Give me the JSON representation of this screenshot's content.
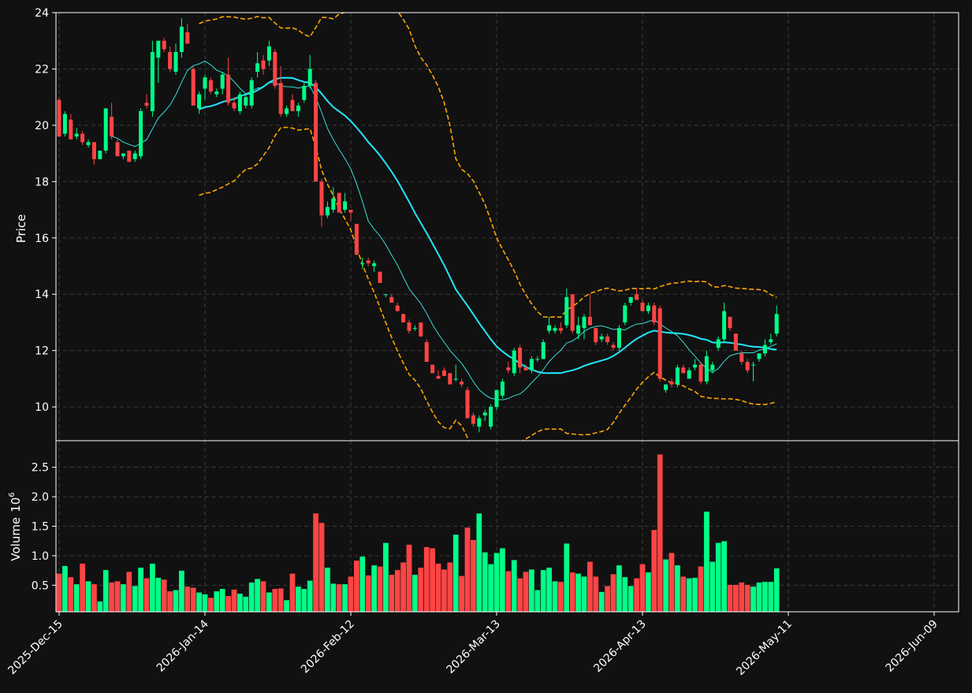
{
  "chart_data": {
    "type": "candlestick",
    "theme": {
      "background": "#111111",
      "grid": "#3a3a3a",
      "axis": "#ffffff",
      "up": "#00ff88",
      "down": "#ff4444",
      "ma_fast": "#37e0d6",
      "ma_slow": "#21e6ff",
      "bands": "#ffa500"
    },
    "price_panel": {
      "ylabel": "Price",
      "ylim": [
        8.8,
        24
      ],
      "yticks": [
        "10",
        "12",
        "14",
        "16",
        "18",
        "20",
        "22",
        "24"
      ],
      "yticks_values": [
        10,
        12,
        14,
        16,
        18,
        20,
        22,
        24
      ]
    },
    "volume_panel": {
      "ylabel": "Volume",
      "exponent": "6",
      "ylim": [
        0.05,
        2.95
      ],
      "yticks": [
        "0.5",
        "1.0",
        "1.5",
        "2.0",
        "2.5"
      ],
      "yticks_values": [
        0.5,
        1.0,
        1.5,
        2.0,
        2.5
      ]
    },
    "x_ticks": [
      {
        "index": 0,
        "label": "2025-Dec-15"
      },
      {
        "index": 25,
        "label": "2026-Jan-14"
      },
      {
        "index": 50,
        "label": "2026-Feb-12"
      },
      {
        "index": 75,
        "label": "2026-Mar-13"
      },
      {
        "index": 100,
        "label": "2026-Apr-13"
      },
      {
        "index": 125,
        "label": "2026-May-11"
      },
      {
        "index": 150,
        "label": "2026-Jun-09"
      }
    ],
    "candles": [
      {
        "o": 20.9,
        "h": 21.0,
        "l": 19.6,
        "c": 19.6
      },
      {
        "o": 19.7,
        "h": 20.5,
        "l": 19.6,
        "c": 20.4
      },
      {
        "o": 20.2,
        "h": 20.4,
        "l": 19.5,
        "c": 19.5
      },
      {
        "o": 19.6,
        "h": 19.9,
        "l": 19.5,
        "c": 19.7
      },
      {
        "o": 19.7,
        "h": 19.8,
        "l": 19.3,
        "c": 19.4
      },
      {
        "o": 19.3,
        "h": 19.5,
        "l": 19.2,
        "c": 19.4
      },
      {
        "o": 19.4,
        "h": 19.4,
        "l": 18.6,
        "c": 18.8
      },
      {
        "o": 18.8,
        "h": 19.1,
        "l": 18.8,
        "c": 19.1
      },
      {
        "o": 19.1,
        "h": 20.6,
        "l": 19.0,
        "c": 20.6
      },
      {
        "o": 20.3,
        "h": 20.8,
        "l": 19.5,
        "c": 19.6
      },
      {
        "o": 19.4,
        "h": 19.5,
        "l": 18.9,
        "c": 18.9
      },
      {
        "o": 18.9,
        "h": 19.0,
        "l": 18.8,
        "c": 19.0
      },
      {
        "o": 19.1,
        "h": 19.1,
        "l": 18.7,
        "c": 18.7
      },
      {
        "o": 18.8,
        "h": 19.1,
        "l": 18.7,
        "c": 19.0
      },
      {
        "o": 18.9,
        "h": 20.6,
        "l": 18.8,
        "c": 20.5
      },
      {
        "o": 20.8,
        "h": 21.1,
        "l": 20.6,
        "c": 20.7
      },
      {
        "o": 20.5,
        "h": 23.0,
        "l": 20.3,
        "c": 22.6
      },
      {
        "o": 22.4,
        "h": 23.0,
        "l": 21.5,
        "c": 23.0
      },
      {
        "o": 23.0,
        "h": 23.1,
        "l": 22.6,
        "c": 22.7
      },
      {
        "o": 22.6,
        "h": 22.8,
        "l": 21.9,
        "c": 22.0
      },
      {
        "o": 21.9,
        "h": 22.9,
        "l": 21.8,
        "c": 22.6
      },
      {
        "o": 22.6,
        "h": 23.8,
        "l": 22.4,
        "c": 23.5
      },
      {
        "o": 23.3,
        "h": 23.6,
        "l": 22.9,
        "c": 22.9
      },
      {
        "o": 22.0,
        "h": 22.1,
        "l": 20.7,
        "c": 20.7
      },
      {
        "o": 20.6,
        "h": 21.2,
        "l": 20.4,
        "c": 21.1
      },
      {
        "o": 21.3,
        "h": 21.8,
        "l": 20.9,
        "c": 21.7
      },
      {
        "o": 21.6,
        "h": 21.7,
        "l": 21.1,
        "c": 21.2
      },
      {
        "o": 21.1,
        "h": 21.3,
        "l": 21.0,
        "c": 21.2
      },
      {
        "o": 21.3,
        "h": 21.9,
        "l": 21.1,
        "c": 21.8
      },
      {
        "o": 21.8,
        "h": 22.4,
        "l": 20.7,
        "c": 20.8
      },
      {
        "o": 20.8,
        "h": 21.0,
        "l": 20.5,
        "c": 20.6
      },
      {
        "o": 20.5,
        "h": 21.2,
        "l": 20.4,
        "c": 21.1
      },
      {
        "o": 20.7,
        "h": 21.1,
        "l": 20.6,
        "c": 21.0
      },
      {
        "o": 20.7,
        "h": 21.7,
        "l": 20.6,
        "c": 21.6
      },
      {
        "o": 21.9,
        "h": 22.6,
        "l": 21.7,
        "c": 22.2
      },
      {
        "o": 22.3,
        "h": 22.5,
        "l": 21.8,
        "c": 22.0
      },
      {
        "o": 22.3,
        "h": 23.0,
        "l": 22.1,
        "c": 22.8
      },
      {
        "o": 22.6,
        "h": 22.7,
        "l": 21.3,
        "c": 21.4
      },
      {
        "o": 21.5,
        "h": 22.1,
        "l": 20.3,
        "c": 20.4
      },
      {
        "o": 20.4,
        "h": 20.7,
        "l": 20.3,
        "c": 20.6
      },
      {
        "o": 20.9,
        "h": 21.1,
        "l": 20.5,
        "c": 20.5
      },
      {
        "o": 20.5,
        "h": 20.8,
        "l": 20.3,
        "c": 20.7
      },
      {
        "o": 20.9,
        "h": 21.5,
        "l": 20.8,
        "c": 21.4
      },
      {
        "o": 21.4,
        "h": 22.5,
        "l": 21.3,
        "c": 22.0
      },
      {
        "o": 21.5,
        "h": 21.6,
        "l": 18.0,
        "c": 18.0
      },
      {
        "o": 18.0,
        "h": 18.1,
        "l": 16.4,
        "c": 16.8
      },
      {
        "o": 16.8,
        "h": 17.3,
        "l": 16.7,
        "c": 17.1
      },
      {
        "o": 17.0,
        "h": 17.8,
        "l": 16.9,
        "c": 17.4
      },
      {
        "o": 17.6,
        "h": 17.6,
        "l": 16.9,
        "c": 16.9
      },
      {
        "o": 17.0,
        "h": 17.6,
        "l": 16.9,
        "c": 17.3
      },
      {
        "o": 17.0,
        "h": 17.0,
        "l": 16.6,
        "c": 16.9
      },
      {
        "o": 16.5,
        "h": 16.5,
        "l": 15.4,
        "c": 15.4
      },
      {
        "o": 15.1,
        "h": 15.3,
        "l": 14.9,
        "c": 15.1
      },
      {
        "o": 15.2,
        "h": 15.3,
        "l": 15.0,
        "c": 15.1
      },
      {
        "o": 15.0,
        "h": 15.2,
        "l": 14.8,
        "c": 15.1
      },
      {
        "o": 14.8,
        "h": 14.8,
        "l": 14.4,
        "c": 14.4
      },
      {
        "o": 14.0,
        "h": 14.0,
        "l": 13.9,
        "c": 14.0
      },
      {
        "o": 13.9,
        "h": 14.0,
        "l": 13.7,
        "c": 13.7
      },
      {
        "o": 13.6,
        "h": 13.7,
        "l": 13.4,
        "c": 13.4
      },
      {
        "o": 13.3,
        "h": 13.3,
        "l": 13.0,
        "c": 13.0
      },
      {
        "o": 13.0,
        "h": 13.1,
        "l": 12.6,
        "c": 12.7
      },
      {
        "o": 12.8,
        "h": 12.9,
        "l": 12.7,
        "c": 12.8
      },
      {
        "o": 13.0,
        "h": 13.0,
        "l": 12.5,
        "c": 12.5
      },
      {
        "o": 12.3,
        "h": 12.4,
        "l": 11.6,
        "c": 11.6
      },
      {
        "o": 11.5,
        "h": 11.5,
        "l": 11.2,
        "c": 11.2
      },
      {
        "o": 11.1,
        "h": 11.3,
        "l": 11.0,
        "c": 11.0
      },
      {
        "o": 11.3,
        "h": 11.4,
        "l": 11.1,
        "c": 11.1
      },
      {
        "o": 11.2,
        "h": 11.2,
        "l": 10.8,
        "c": 10.8
      },
      {
        "o": 11.0,
        "h": 11.5,
        "l": 10.9,
        "c": 11.0
      },
      {
        "o": 10.9,
        "h": 11.0,
        "l": 10.7,
        "c": 10.8
      },
      {
        "o": 10.6,
        "h": 10.7,
        "l": 9.6,
        "c": 9.6
      },
      {
        "o": 9.7,
        "h": 9.8,
        "l": 9.3,
        "c": 9.4
      },
      {
        "o": 9.3,
        "h": 9.7,
        "l": 9.1,
        "c": 9.6
      },
      {
        "o": 9.7,
        "h": 9.9,
        "l": 9.5,
        "c": 9.8
      },
      {
        "o": 9.3,
        "h": 10.1,
        "l": 9.2,
        "c": 10.0
      },
      {
        "o": 10.0,
        "h": 10.6,
        "l": 9.9,
        "c": 10.6
      },
      {
        "o": 10.4,
        "h": 11.0,
        "l": 10.3,
        "c": 10.9
      },
      {
        "o": 11.4,
        "h": 11.6,
        "l": 11.2,
        "c": 11.3
      },
      {
        "o": 11.2,
        "h": 12.1,
        "l": 11.1,
        "c": 12.0
      },
      {
        "o": 12.1,
        "h": 12.2,
        "l": 11.2,
        "c": 11.4
      },
      {
        "o": 11.4,
        "h": 11.5,
        "l": 11.3,
        "c": 11.3
      },
      {
        "o": 11.3,
        "h": 11.8,
        "l": 11.2,
        "c": 11.7
      },
      {
        "o": 11.7,
        "h": 11.8,
        "l": 11.6,
        "c": 11.7
      },
      {
        "o": 11.7,
        "h": 12.4,
        "l": 11.7,
        "c": 12.3
      },
      {
        "o": 12.7,
        "h": 13.2,
        "l": 12.6,
        "c": 12.9
      },
      {
        "o": 12.7,
        "h": 12.9,
        "l": 12.6,
        "c": 12.8
      },
      {
        "o": 12.8,
        "h": 13.0,
        "l": 12.6,
        "c": 12.7
      },
      {
        "o": 12.9,
        "h": 14.2,
        "l": 12.8,
        "c": 13.9
      },
      {
        "o": 14.0,
        "h": 14.0,
        "l": 12.6,
        "c": 12.7
      },
      {
        "o": 12.6,
        "h": 13.2,
        "l": 12.4,
        "c": 12.9
      },
      {
        "o": 12.8,
        "h": 13.3,
        "l": 12.4,
        "c": 13.2
      },
      {
        "o": 13.2,
        "h": 14.0,
        "l": 12.9,
        "c": 12.9
      },
      {
        "o": 12.8,
        "h": 12.8,
        "l": 12.2,
        "c": 12.3
      },
      {
        "o": 12.4,
        "h": 12.6,
        "l": 12.3,
        "c": 12.5
      },
      {
        "o": 12.5,
        "h": 12.6,
        "l": 12.2,
        "c": 12.3
      },
      {
        "o": 12.2,
        "h": 12.3,
        "l": 12.0,
        "c": 12.1
      },
      {
        "o": 12.1,
        "h": 12.9,
        "l": 12.0,
        "c": 12.8
      },
      {
        "o": 13.0,
        "h": 13.7,
        "l": 12.9,
        "c": 13.6
      },
      {
        "o": 13.7,
        "h": 13.9,
        "l": 13.6,
        "c": 13.9
      },
      {
        "o": 14.0,
        "h": 14.2,
        "l": 13.8,
        "c": 13.8
      },
      {
        "o": 13.7,
        "h": 13.8,
        "l": 13.4,
        "c": 13.4
      },
      {
        "o": 13.4,
        "h": 13.7,
        "l": 13.3,
        "c": 13.6
      },
      {
        "o": 13.6,
        "h": 13.7,
        "l": 12.9,
        "c": 13.0
      },
      {
        "o": 13.5,
        "h": 13.6,
        "l": 10.9,
        "c": 11.0
      },
      {
        "o": 10.6,
        "h": 10.8,
        "l": 10.5,
        "c": 10.8
      },
      {
        "o": 10.9,
        "h": 11.0,
        "l": 10.7,
        "c": 10.8
      },
      {
        "o": 10.8,
        "h": 11.5,
        "l": 10.7,
        "c": 11.4
      },
      {
        "o": 11.4,
        "h": 11.5,
        "l": 11.2,
        "c": 11.2
      },
      {
        "o": 11.0,
        "h": 11.4,
        "l": 11.0,
        "c": 11.3
      },
      {
        "o": 11.4,
        "h": 11.7,
        "l": 11.3,
        "c": 11.5
      },
      {
        "o": 11.5,
        "h": 11.6,
        "l": 10.8,
        "c": 10.9
      },
      {
        "o": 10.9,
        "h": 12.0,
        "l": 10.8,
        "c": 11.8
      },
      {
        "o": 11.3,
        "h": 11.6,
        "l": 11.2,
        "c": 11.5
      },
      {
        "o": 12.1,
        "h": 12.5,
        "l": 12.0,
        "c": 12.4
      },
      {
        "o": 12.4,
        "h": 13.7,
        "l": 12.3,
        "c": 13.4
      },
      {
        "o": 13.2,
        "h": 13.2,
        "l": 12.7,
        "c": 12.8
      },
      {
        "o": 12.6,
        "h": 12.6,
        "l": 12.0,
        "c": 12.0
      },
      {
        "o": 11.9,
        "h": 12.0,
        "l": 11.5,
        "c": 11.6
      },
      {
        "o": 11.6,
        "h": 11.7,
        "l": 11.2,
        "c": 11.3
      },
      {
        "o": 11.5,
        "h": 11.6,
        "l": 10.9,
        "c": 11.5
      },
      {
        "o": 11.7,
        "h": 11.9,
        "l": 11.6,
        "c": 11.9
      },
      {
        "o": 11.9,
        "h": 12.4,
        "l": 11.8,
        "c": 12.2
      },
      {
        "o": 12.3,
        "h": 12.6,
        "l": 12.2,
        "c": 12.4
      },
      {
        "o": 12.6,
        "h": 13.6,
        "l": 12.5,
        "c": 13.3
      }
    ],
    "volume": [
      0.7,
      0.83,
      0.64,
      0.52,
      0.87,
      0.57,
      0.52,
      0.23,
      0.76,
      0.55,
      0.57,
      0.52,
      0.73,
      0.49,
      0.8,
      0.62,
      0.87,
      0.63,
      0.6,
      0.4,
      0.42,
      0.75,
      0.48,
      0.46,
      0.38,
      0.35,
      0.29,
      0.4,
      0.44,
      0.32,
      0.43,
      0.36,
      0.31,
      0.55,
      0.61,
      0.57,
      0.38,
      0.44,
      0.45,
      0.25,
      0.7,
      0.48,
      0.44,
      0.58,
      1.72,
      1.56,
      0.8,
      0.53,
      0.52,
      0.52,
      0.65,
      0.92,
      0.99,
      0.67,
      0.84,
      0.82,
      1.22,
      0.68,
      0.76,
      0.89,
      1.19,
      0.68,
      0.8,
      1.15,
      1.13,
      0.87,
      0.77,
      0.89,
      1.36,
      0.66,
      1.48,
      1.27,
      1.72,
      1.06,
      0.86,
      1.05,
      1.13,
      0.74,
      0.93,
      0.62,
      0.73,
      0.77,
      0.42,
      0.76,
      0.8,
      0.57,
      0.56,
      1.21,
      0.72,
      0.7,
      0.65,
      0.9,
      0.65,
      0.39,
      0.49,
      0.69,
      0.84,
      0.64,
      0.49,
      0.62,
      0.86,
      0.72,
      1.44,
      2.72,
      0.94,
      1.05,
      0.84,
      0.65,
      0.62,
      0.63,
      0.82,
      1.75,
      0.9,
      1.22,
      1.25,
      0.51,
      0.51,
      0.55,
      0.51,
      0.48,
      0.55,
      0.56,
      0.56,
      0.79
    ]
  }
}
